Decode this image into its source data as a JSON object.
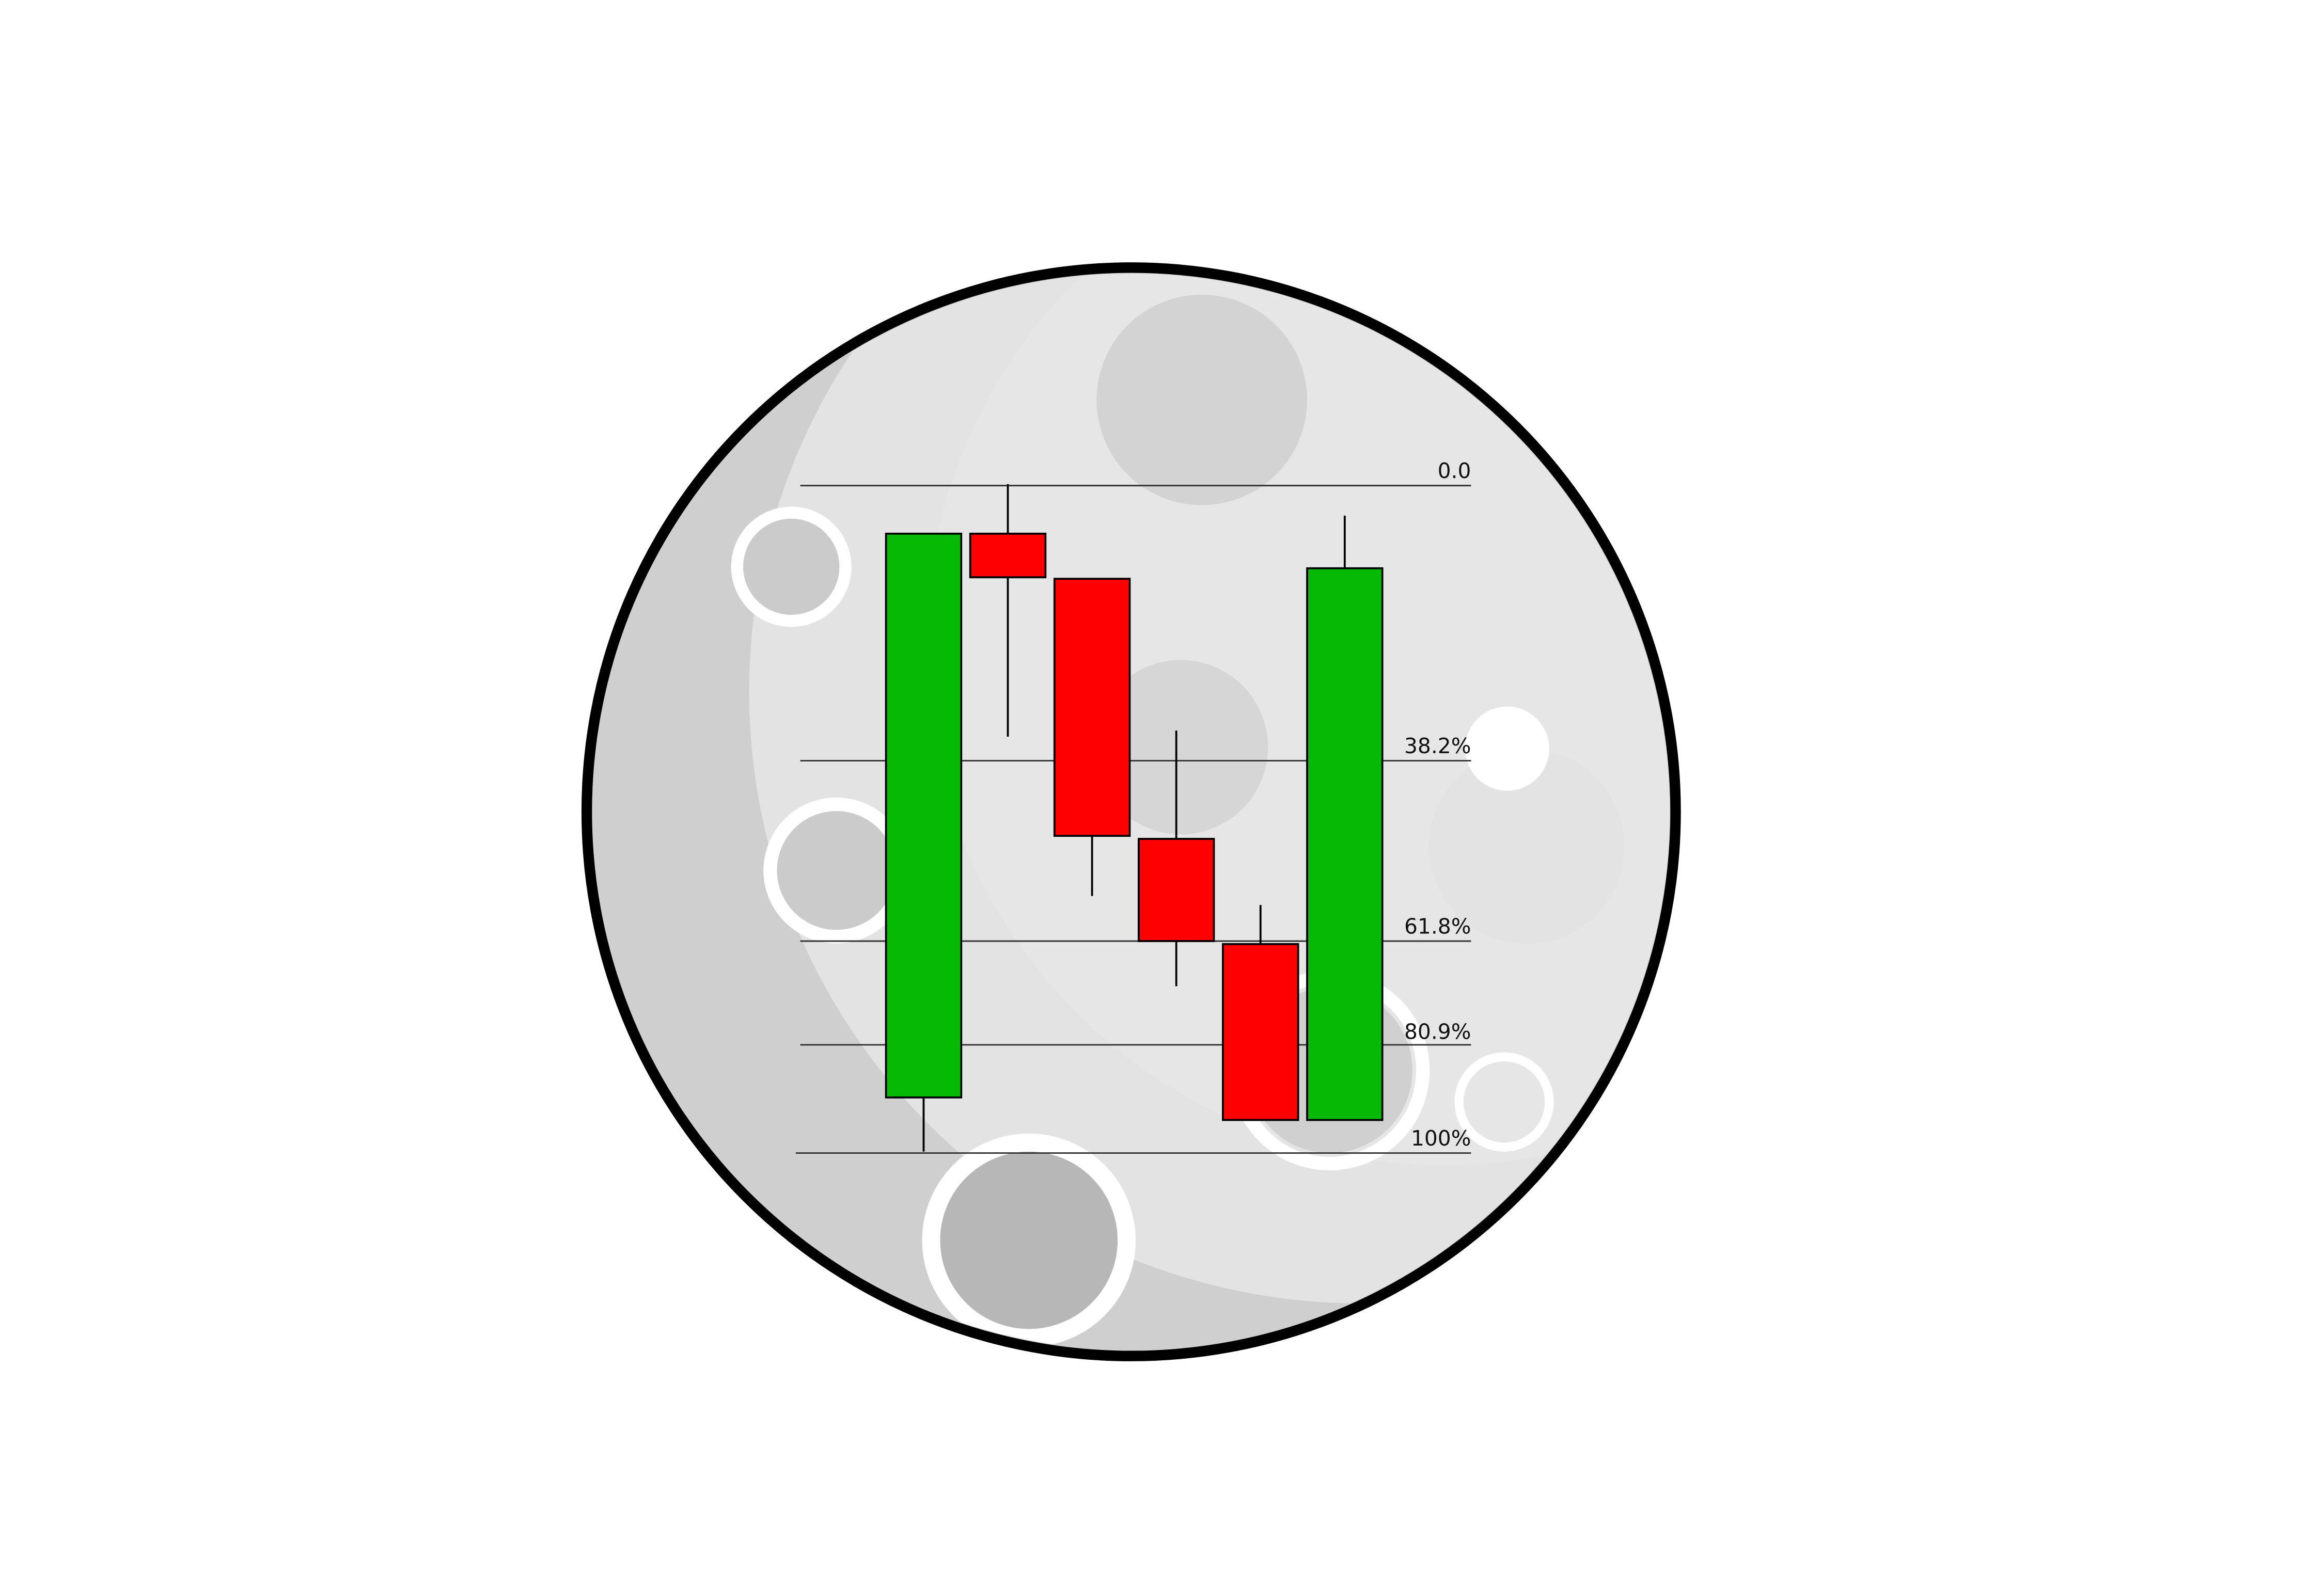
{
  "levels": [
    {
      "label": "0.0"
    },
    {
      "label": "38.2%"
    },
    {
      "label": "61.8%"
    },
    {
      "label": "80.9%"
    },
    {
      "label": "100%"
    }
  ]
}
